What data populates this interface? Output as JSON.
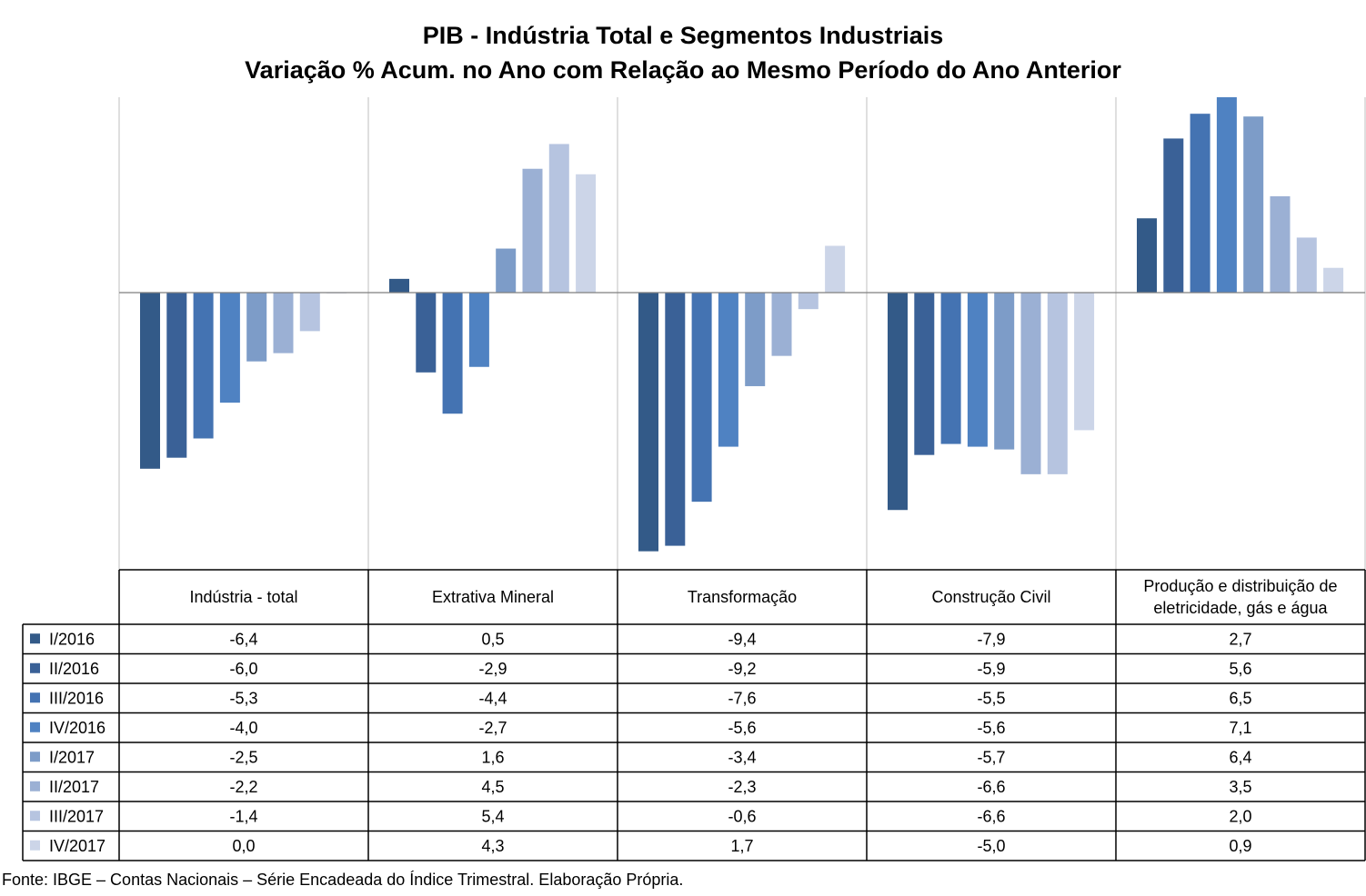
{
  "chart_data": {
    "type": "bar",
    "title": "PIB - Indústria Total e Segmentos Industriais",
    "subtitle": "Variação % Acum. no Ano com Relação ao Mesmo Período do Ano Anterior",
    "categories": [
      "Indústria - total",
      "Extrativa Mineral",
      "Transformação",
      "Construção Civil",
      "Produção e distribuição de eletricidade, gás e água"
    ],
    "series": [
      {
        "name": "I/2016",
        "color": "#335a88",
        "values": [
          -6.4,
          0.5,
          -9.4,
          -7.9,
          2.7
        ]
      },
      {
        "name": "II/2016",
        "color": "#3a6197",
        "values": [
          -6.0,
          -2.9,
          -9.2,
          -5.9,
          5.6
        ]
      },
      {
        "name": "III/2016",
        "color": "#4473b2",
        "values": [
          -5.3,
          -4.4,
          -7.6,
          -5.5,
          6.5
        ]
      },
      {
        "name": "IV/2016",
        "color": "#4f82c2",
        "values": [
          -4.0,
          -2.7,
          -5.6,
          -5.6,
          7.1
        ]
      },
      {
        "name": "I/2017",
        "color": "#7d9cc8",
        "values": [
          -2.5,
          1.6,
          -3.4,
          -5.7,
          6.4
        ]
      },
      {
        "name": "II/2017",
        "color": "#9bb0d4",
        "values": [
          -2.2,
          4.5,
          -2.3,
          -6.6,
          3.5
        ]
      },
      {
        "name": "III/2017",
        "color": "#b6c4e0",
        "values": [
          -1.4,
          5.4,
          -0.6,
          -6.6,
          2.0
        ]
      },
      {
        "name": "IV/2017",
        "color": "#ccd5e8",
        "values": [
          0.0,
          4.3,
          1.7,
          -5.0,
          0.9
        ]
      }
    ],
    "ylim": [
      -10,
      7.1
    ],
    "grid": false,
    "legend": "data-table-left",
    "data_table": true,
    "decimal_separator": ","
  },
  "source": "Fonte: IBGE – Contas Nacionais – Série Encadeada do Índice Trimestral. Elaboração Própria."
}
